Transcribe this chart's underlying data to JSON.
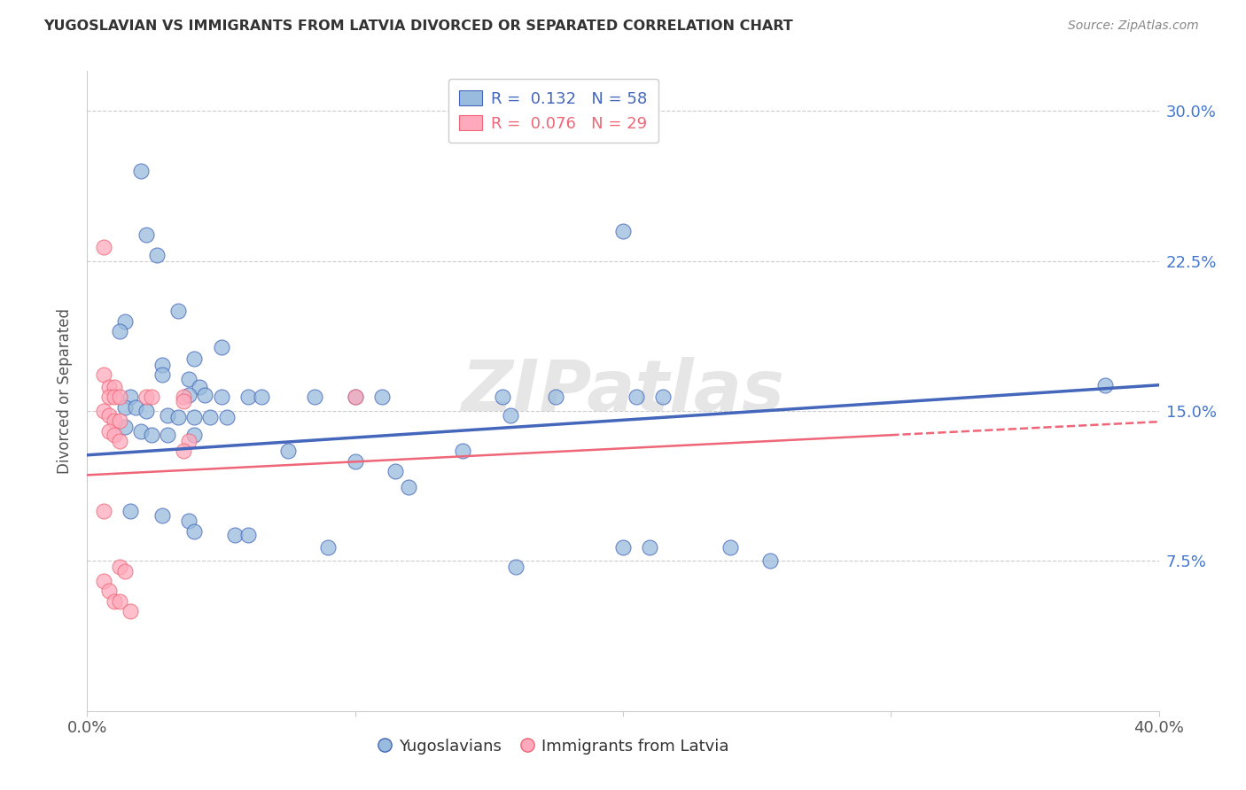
{
  "title": "YUGOSLAVIAN VS IMMIGRANTS FROM LATVIA DIVORCED OR SEPARATED CORRELATION CHART",
  "source": "Source: ZipAtlas.com",
  "ylabel": "Divorced or Separated",
  "ytick_labels": [
    "7.5%",
    "15.0%",
    "22.5%",
    "30.0%"
  ],
  "ytick_values": [
    0.075,
    0.15,
    0.225,
    0.3
  ],
  "xmin": 0.0,
  "xmax": 0.4,
  "ymin": 0.0,
  "ymax": 0.32,
  "legend_entry1": "R =  0.132   N = 58",
  "legend_entry2": "R =  0.076   N = 29",
  "legend_label1": "Yugoslavians",
  "legend_label2": "Immigrants from Latvia",
  "color_blue": "#99BBDD",
  "color_pink": "#FFAABC",
  "color_line_blue": "#4466BB",
  "color_line_pink": "#EE6677",
  "watermark": "ZIPatlas",
  "blue_line_x": [
    0.0,
    0.4
  ],
  "blue_line_y": [
    0.128,
    0.163
  ],
  "pink_line_x": [
    0.0,
    0.3
  ],
  "pink_line_y": [
    0.118,
    0.138
  ],
  "blue_points": [
    [
      0.02,
      0.27
    ],
    [
      0.022,
      0.238
    ],
    [
      0.026,
      0.228
    ],
    [
      0.034,
      0.2
    ],
    [
      0.2,
      0.24
    ],
    [
      0.014,
      0.195
    ],
    [
      0.012,
      0.19
    ],
    [
      0.05,
      0.182
    ],
    [
      0.04,
      0.176
    ],
    [
      0.028,
      0.173
    ],
    [
      0.028,
      0.168
    ],
    [
      0.038,
      0.166
    ],
    [
      0.042,
      0.162
    ],
    [
      0.038,
      0.158
    ],
    [
      0.044,
      0.158
    ],
    [
      0.016,
      0.157
    ],
    [
      0.05,
      0.157
    ],
    [
      0.06,
      0.157
    ],
    [
      0.065,
      0.157
    ],
    [
      0.085,
      0.157
    ],
    [
      0.1,
      0.157
    ],
    [
      0.11,
      0.157
    ],
    [
      0.155,
      0.157
    ],
    [
      0.175,
      0.157
    ],
    [
      0.205,
      0.157
    ],
    [
      0.215,
      0.157
    ],
    [
      0.014,
      0.152
    ],
    [
      0.018,
      0.152
    ],
    [
      0.022,
      0.15
    ],
    [
      0.03,
      0.148
    ],
    [
      0.034,
      0.147
    ],
    [
      0.04,
      0.147
    ],
    [
      0.046,
      0.147
    ],
    [
      0.052,
      0.147
    ],
    [
      0.014,
      0.142
    ],
    [
      0.02,
      0.14
    ],
    [
      0.024,
      0.138
    ],
    [
      0.03,
      0.138
    ],
    [
      0.04,
      0.138
    ],
    [
      0.075,
      0.13
    ],
    [
      0.1,
      0.125
    ],
    [
      0.115,
      0.12
    ],
    [
      0.12,
      0.112
    ],
    [
      0.14,
      0.13
    ],
    [
      0.016,
      0.1
    ],
    [
      0.028,
      0.098
    ],
    [
      0.038,
      0.095
    ],
    [
      0.04,
      0.09
    ],
    [
      0.055,
      0.088
    ],
    [
      0.06,
      0.088
    ],
    [
      0.09,
      0.082
    ],
    [
      0.21,
      0.082
    ],
    [
      0.24,
      0.082
    ],
    [
      0.2,
      0.082
    ],
    [
      0.255,
      0.075
    ],
    [
      0.16,
      0.072
    ],
    [
      0.38,
      0.163
    ],
    [
      0.158,
      0.148
    ]
  ],
  "pink_points": [
    [
      0.006,
      0.232
    ],
    [
      0.006,
      0.168
    ],
    [
      0.008,
      0.162
    ],
    [
      0.01,
      0.162
    ],
    [
      0.008,
      0.157
    ],
    [
      0.01,
      0.157
    ],
    [
      0.012,
      0.157
    ],
    [
      0.022,
      0.157
    ],
    [
      0.024,
      0.157
    ],
    [
      0.036,
      0.157
    ],
    [
      0.036,
      0.155
    ],
    [
      0.1,
      0.157
    ],
    [
      0.006,
      0.15
    ],
    [
      0.008,
      0.148
    ],
    [
      0.01,
      0.145
    ],
    [
      0.012,
      0.145
    ],
    [
      0.008,
      0.14
    ],
    [
      0.01,
      0.138
    ],
    [
      0.012,
      0.135
    ],
    [
      0.038,
      0.135
    ],
    [
      0.036,
      0.13
    ],
    [
      0.006,
      0.1
    ],
    [
      0.012,
      0.072
    ],
    [
      0.014,
      0.07
    ],
    [
      0.006,
      0.065
    ],
    [
      0.008,
      0.06
    ],
    [
      0.01,
      0.055
    ],
    [
      0.012,
      0.055
    ],
    [
      0.016,
      0.05
    ]
  ]
}
